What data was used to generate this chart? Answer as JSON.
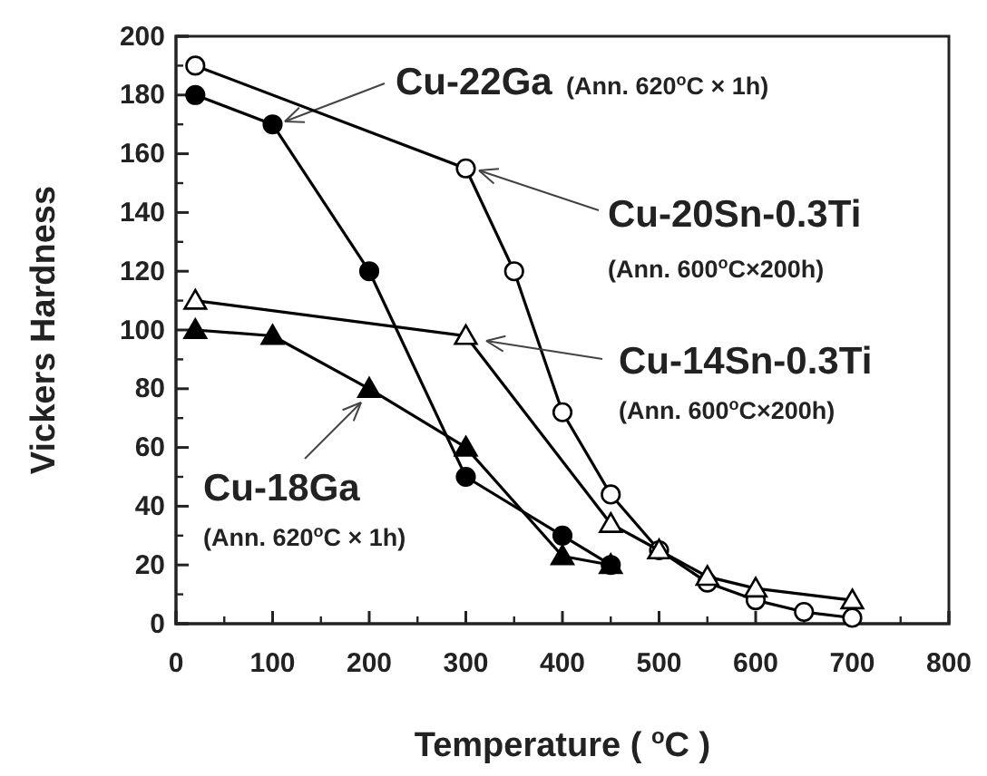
{
  "chart_data": {
    "type": "line",
    "xlabel": "Temperature ( $^{o}$C )",
    "ylabel": "Vickers Hardness",
    "xlim": [
      0,
      800
    ],
    "xticks": [
      0,
      100,
      200,
      300,
      400,
      500,
      600,
      700,
      800
    ],
    "ylim": [
      0,
      200
    ],
    "yticks": [
      0,
      20,
      40,
      60,
      80,
      100,
      120,
      140,
      160,
      180,
      200
    ],
    "grid": false,
    "line_style": "solid",
    "series": [
      {
        "name": "Cu-22Ga",
        "color": "#000000",
        "marker": "circle",
        "x": [
          20,
          100,
          200,
          300,
          400,
          450
        ],
        "values": [
          180,
          170,
          120,
          50,
          30,
          20
        ]
      },
      {
        "name": "Cu-20Sn-0.3Ti",
        "color": "#000000",
        "marker": "circle",
        "x": [
          20,
          300,
          350,
          400,
          450,
          500,
          550,
          600,
          650,
          700
        ],
        "values": [
          190,
          155,
          120,
          72,
          44,
          25,
          14,
          8,
          4,
          2
        ]
      },
      {
        "name": "Cu-14Sn-0.3Ti",
        "color": "#000000",
        "marker": "triangle",
        "x": [
          20,
          300,
          450,
          500,
          550,
          600,
          700
        ],
        "values": [
          110,
          98,
          34,
          25,
          16,
          12,
          8
        ]
      },
      {
        "name": "Cu-18Ga",
        "color": "#000000",
        "marker": "triangle",
        "x": [
          20,
          100,
          200,
          300,
          400,
          450
        ],
        "values": [
          100,
          98,
          80,
          60,
          23,
          20
        ]
      }
    ],
    "annotations": [
      "(Ann. 620$^{o}$C × 1h)",
      "(Ann. 600$^{o}$C×200h)",
      "(Ann. 600$^{o}$C×200h)",
      "(Ann. 620$^{o}$C × 1h)"
    ]
  }
}
